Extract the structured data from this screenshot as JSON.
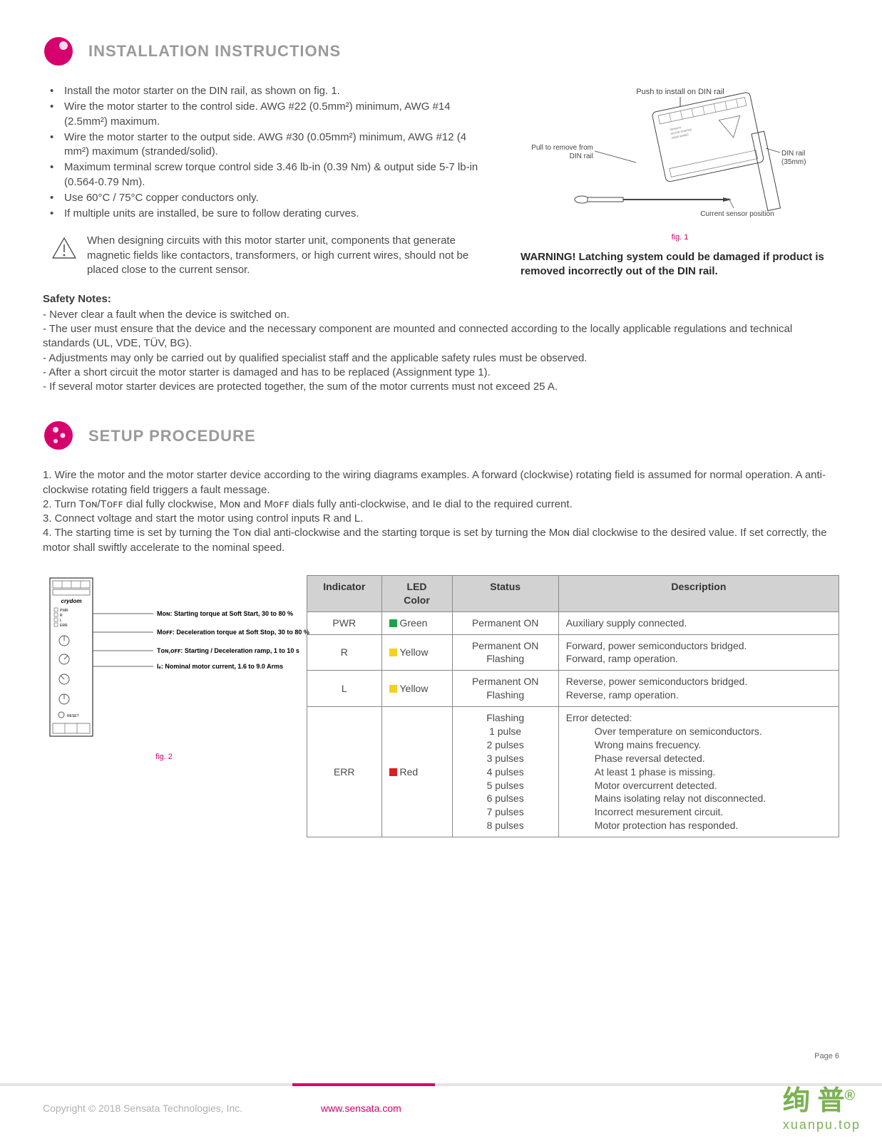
{
  "colors": {
    "accent": "#d6006c",
    "heading": "#9a9a9a",
    "body": "#4a4a4a",
    "table_header_bg": "#d2d2d2",
    "table_border": "#888888",
    "led_green": "#1aa34a",
    "led_yellow": "#f2d21a",
    "led_red": "#d82020",
    "watermark": "#6caa3f"
  },
  "section1": {
    "title": "INSTALLATION INSTRUCTIONS",
    "bullets": [
      "Install the motor starter on the DIN rail, as shown on fig. 1.",
      "Wire the motor starter to the control side. AWG #22 (0.5mm²)  minimum, AWG #14 (2.5mm²) maximum.",
      "Wire the motor starter to the output side. AWG #30 (0.05mm²) minimum, AWG #12 (4 mm²) maximum (stranded/solid).",
      "Maximum terminal screw torque control side 3.46 lb-in (0.39 Nm) & output side 5-7 lb-in (0.564-0.79 Nm).",
      "Use 60°C / 75°C copper conductors only.",
      "If multiple units are installed, be sure to follow derating curves."
    ],
    "caution": "When designing circuits with this motor starter unit, components that generate magnetic fields like contactors, transformers, or high current wires, should not be placed close to the current sensor.",
    "fig1": {
      "caption": "fig. 1",
      "label_push": "Push to install on DIN rail",
      "label_pull": "Pull to remove from DIN rail",
      "label_din": "DIN rail (35mm)",
      "label_sensor": "Current sensor position"
    },
    "warning": "WARNING! Latching system could be damaged if product is removed incorrectly out of the DIN rail.",
    "safety_title": "Safety Notes:",
    "safety": [
      "- Never clear a fault when the device is switched on.",
      "- The user must ensure that the device and the necessary component are mounted and connected according to the locally applicable regulations and technical standards (UL, VDE, TÜV, BG).",
      "- Adjustments may only be carried out by qualified specialist staff and the applicable safety rules must be observed.",
      "- After a short circuit the motor starter is damaged and has to be replaced (Assignment type 1).",
      "- If several motor starter devices are protected together, the sum of the motor currents must not exceed 25 A."
    ]
  },
  "section2": {
    "title": "SETUP PROCEDURE",
    "steps": [
      "1. Wire the motor and the motor starter device according to the wiring diagrams examples. A forward (clockwise) rotating field is assumed for normal operation. A anti-clockwise rotating field triggers a fault message.",
      "2. Turn Tᴏɴ/Tᴏꜰꜰ dial fully clockwise, Mᴏɴ and Mᴏꜰꜰ dials fully anti-clockwise, and Ie dial to the required current.",
      "3. Connect voltage and start the motor using control inputs R and L.",
      "4. The starting time is set by turning the Tᴏɴ dial anti-clockwise and the starting torque is set by turning the Mᴏɴ dial clockwise to the desired value. If set correctly, the motor shall swiftly accelerate to the nominal speed."
    ],
    "fig2": {
      "caption": "fig. 2",
      "labels": [
        "Mᴏɴ: Starting torque at Soft Start,  30 to 80 %",
        "Mᴏꜰꜰ: Deceleration torque at Soft Stop,  30 to 80 %",
        "Tᴏɴ,ᴏꜰꜰ: Starting / Deceleration ramp, 1 to 10 s",
        "Iₑ: Nominal motor current, 1.6 to 9.0 Arms"
      ],
      "device_brand": "crydom",
      "panel_leds": [
        "PWR",
        "R",
        "L",
        "ERR"
      ],
      "reset_label": "RESET"
    },
    "table": {
      "headers": [
        "Indicator",
        "LED Color",
        "Status",
        "Description"
      ],
      "rows": [
        {
          "indicator": "PWR",
          "color_name": "Green",
          "color": "#1aa34a",
          "status": "Permanent  ON",
          "desc": "Auxiliary supply connected."
        },
        {
          "indicator": "R",
          "color_name": "Yellow",
          "color": "#f2d21a",
          "status": "Permanent  ON\nFlashing",
          "desc": "Forward, power semiconductors bridged.\nForward, ramp operation."
        },
        {
          "indicator": "L",
          "color_name": "Yellow",
          "color": "#f2d21a",
          "status": "Permanent  ON\nFlashing",
          "desc": "Reverse, power semiconductors bridged.\nReverse, ramp operation."
        },
        {
          "indicator": "ERR",
          "color_name": "Red",
          "color": "#d82020",
          "status": "Flashing\n1 pulse\n2 pulses\n3 pulses\n4 pulses\n5 pulses\n6 pulses\n7 pulses\n8 pulses",
          "desc_head": "Error detected:",
          "desc_items": [
            "Over temperature on semiconductors.",
            "Wrong mains frecuency.",
            "Phase reversal detected.",
            "At least 1 phase is missing.",
            "Motor overcurrent detected.",
            "Mains isolating relay not disconnected.",
            "Incorrect mesurement circuit.",
            "Motor protection has responded."
          ]
        }
      ]
    }
  },
  "page_number": "Page 6",
  "footer": {
    "copyright": "Copyright © 2018 Sensata Technologies, Inc.",
    "url": "www.sensata.com"
  },
  "watermark": {
    "main": "绚 普",
    "reg": "®",
    "sub": "xuanpu.top"
  }
}
